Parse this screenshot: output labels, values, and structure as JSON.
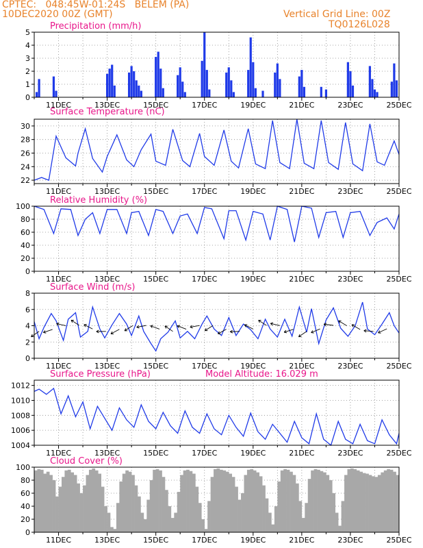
{
  "header": {
    "line1": "CPTEC:   048:45W-01:24S   BELEM (PA)",
    "line2": "10DEC2020 00Z (GMT)",
    "grid_note": "Vertical Grid Line: 00Z",
    "run_code": "TQ0126L028"
  },
  "colors": {
    "header": "#e8822a",
    "title": "#e8168a",
    "series": "#1f3ae8",
    "cloud": "#a8a8a8",
    "axis": "#000000"
  },
  "chart_data": [
    {
      "type": "bar",
      "title": "Precipitation (mm/h)",
      "ylim": [
        0,
        5
      ],
      "yticks": [
        "0",
        "1",
        "2",
        "3",
        "4",
        "5"
      ],
      "xticks": [
        "11DEC",
        "13DEC",
        "15DEC",
        "17DEC",
        "19DEC",
        "21DEC",
        "23DEC",
        "25DEC"
      ],
      "grid": true,
      "series": [
        {
          "x": [
            10.1,
            10.2,
            10.8,
            10.9,
            13.0,
            13.1,
            13.2,
            13.3,
            13.9,
            14.0,
            14.1,
            14.2,
            14.3,
            14.4,
            15.0,
            15.1,
            15.2,
            15.3,
            15.9,
            16.0,
            16.1,
            16.2,
            16.9,
            17.0,
            17.1,
            17.2,
            17.9,
            18.0,
            18.1,
            18.2,
            18.8,
            18.9,
            19.0,
            19.1,
            19.4,
            19.9,
            20.0,
            20.1,
            20.9,
            21.0,
            21.1,
            21.8,
            22.0,
            22.9,
            23.0,
            23.1,
            23.8,
            23.9,
            24.0,
            24.1,
            24.7,
            24.8,
            24.9
          ],
          "values": [
            0.4,
            1.4,
            1.6,
            0.5,
            1.8,
            2.2,
            2.5,
            0.9,
            1.9,
            2.4,
            2.0,
            1.3,
            0.9,
            0.5,
            3.1,
            3.5,
            2.2,
            0.7,
            1.7,
            2.3,
            1.2,
            0.4,
            2.8,
            5.0,
            2.1,
            0.6,
            1.9,
            2.3,
            1.3,
            0.4,
            2.1,
            4.6,
            2.7,
            0.7,
            0.5,
            1.9,
            2.6,
            1.4,
            1.6,
            2.1,
            0.8,
            0.8,
            0.6,
            2.7,
            2.0,
            0.9,
            2.4,
            1.4,
            0.6,
            0.4,
            1.2,
            2.6,
            1.3
          ]
        }
      ]
    },
    {
      "type": "line",
      "title": "Surface Temperature (nC)",
      "ylim": [
        21.5,
        31
      ],
      "yticks": [
        "22",
        "24",
        "26",
        "28",
        "30"
      ],
      "xticks": [
        "11DEC",
        "13DEC",
        "15DEC",
        "17DEC",
        "19DEC",
        "21DEC",
        "23DEC",
        "25DEC"
      ],
      "grid": true,
      "series": [
        {
          "x": [
            10.0,
            10.3,
            10.6,
            10.9,
            11.3,
            11.7,
            11.8,
            12.1,
            12.4,
            12.8,
            13.0,
            13.4,
            13.8,
            14.1,
            14.4,
            14.8,
            15.0,
            15.4,
            15.7,
            16.1,
            16.4,
            16.8,
            17.0,
            17.4,
            17.8,
            18.1,
            18.4,
            18.8,
            19.1,
            19.5,
            19.8,
            20.1,
            20.5,
            20.8,
            21.1,
            21.5,
            21.8,
            22.1,
            22.5,
            22.8,
            23.1,
            23.5,
            23.8,
            24.1,
            24.4,
            24.8,
            25.0
          ],
          "values": [
            22.0,
            22.4,
            22.0,
            28.5,
            25.3,
            24.1,
            26.0,
            29.6,
            25.2,
            23.2,
            25.5,
            28.7,
            25.0,
            24.0,
            26.5,
            28.8,
            24.8,
            24.2,
            29.5,
            24.9,
            24.0,
            28.9,
            25.5,
            24.2,
            29.4,
            24.8,
            23.8,
            29.6,
            24.4,
            23.7,
            30.8,
            24.6,
            23.7,
            31.1,
            24.5,
            23.7,
            30.8,
            24.6,
            23.6,
            30.5,
            24.4,
            23.4,
            30.3,
            24.7,
            24.2,
            27.8,
            25.8
          ]
        }
      ]
    },
    {
      "type": "line",
      "title": "Relative Humidity (%)",
      "ylim": [
        0,
        100
      ],
      "yticks": [
        "0",
        "20",
        "40",
        "60",
        "80",
        "100"
      ],
      "xticks": [
        "11DEC",
        "13DEC",
        "15DEC",
        "17DEC",
        "19DEC",
        "21DEC",
        "23DEC",
        "25DEC"
      ],
      "grid": true,
      "series": [
        {
          "x": [
            10.0,
            10.4,
            10.8,
            11.1,
            11.5,
            11.8,
            12.1,
            12.4,
            12.7,
            13.0,
            13.4,
            13.8,
            14.0,
            14.3,
            14.7,
            15.0,
            15.3,
            15.7,
            16.0,
            16.3,
            16.7,
            17.0,
            17.3,
            17.8,
            18.0,
            18.3,
            18.7,
            19.0,
            19.4,
            19.7,
            20.0,
            20.4,
            20.7,
            21.0,
            21.4,
            21.7,
            22.0,
            22.4,
            22.7,
            23.0,
            23.4,
            23.8,
            24.1,
            24.5,
            24.8,
            25.0
          ],
          "values": [
            100,
            95,
            58,
            96,
            95,
            55,
            80,
            90,
            58,
            95,
            95,
            58,
            90,
            92,
            55,
            95,
            92,
            58,
            85,
            88,
            58,
            98,
            96,
            50,
            93,
            93,
            48,
            92,
            88,
            48,
            100,
            95,
            45,
            100,
            97,
            52,
            90,
            92,
            52,
            90,
            92,
            55,
            75,
            82,
            65,
            88
          ]
        }
      ]
    },
    {
      "type": "line",
      "title": "Surface Wind (m/s)",
      "ylim": [
        0,
        8
      ],
      "yticks": [
        "0",
        "2",
        "4",
        "6",
        "8"
      ],
      "xticks": [
        "11DEC",
        "13DEC",
        "15DEC",
        "17DEC",
        "19DEC",
        "21DEC",
        "23DEC",
        "25DEC"
      ],
      "grid": true,
      "series": [
        {
          "x": [
            10.0,
            10.2,
            10.4,
            10.7,
            10.9,
            11.2,
            11.4,
            11.7,
            11.9,
            12.2,
            12.4,
            12.7,
            12.9,
            13.2,
            13.5,
            13.8,
            14.0,
            14.3,
            14.5,
            14.8,
            15.0,
            15.2,
            15.5,
            15.8,
            16.0,
            16.3,
            16.6,
            16.9,
            17.1,
            17.4,
            17.7,
            18.0,
            18.3,
            18.6,
            18.9,
            19.2,
            19.5,
            19.7,
            20.0,
            20.3,
            20.6,
            20.9,
            21.2,
            21.4,
            21.7,
            22.0,
            22.3,
            22.6,
            22.9,
            23.2,
            23.5,
            23.7,
            24.0,
            24.3,
            24.6,
            24.8,
            25.0
          ],
          "values": [
            4.5,
            2.4,
            3.8,
            5.5,
            4.6,
            2.2,
            4.8,
            5.6,
            2.6,
            3.3,
            6.3,
            3.6,
            2.5,
            4.1,
            5.5,
            4.2,
            2.8,
            5.2,
            3.3,
            1.8,
            0.9,
            2.4,
            3.2,
            4.6,
            2.5,
            3.3,
            2.4,
            4.2,
            5.2,
            3.6,
            2.8,
            5.0,
            2.8,
            4.2,
            3.5,
            2.4,
            4.8,
            3.6,
            2.6,
            4.8,
            2.7,
            6.3,
            3.2,
            6.1,
            1.8,
            4.7,
            6.2,
            3.7,
            2.7,
            4.0,
            6.9,
            3.6,
            2.9,
            4.2,
            5.6,
            4.0,
            3.1
          ]
        }
      ]
    },
    {
      "type": "line",
      "title": "Surface Pressure (hPa)",
      "subtitle": "Model Altitude: 16.029 m",
      "ylim": [
        1004,
        1012.7
      ],
      "yticks": [
        "1004",
        "1006",
        "1008",
        "1010",
        "1012"
      ],
      "xticks": [
        "11DEC",
        "13DEC",
        "15DEC",
        "17DEC",
        "19DEC",
        "21DEC",
        "23DEC",
        "25DEC"
      ],
      "grid": true,
      "series": [
        {
          "x": [
            10.0,
            10.2,
            10.5,
            10.8,
            11.1,
            11.4,
            11.7,
            12.0,
            12.3,
            12.6,
            12.9,
            13.2,
            13.5,
            13.8,
            14.1,
            14.4,
            14.7,
            15.0,
            15.3,
            15.6,
            15.9,
            16.2,
            16.5,
            16.8,
            17.1,
            17.4,
            17.7,
            18.0,
            18.3,
            18.6,
            18.9,
            19.2,
            19.5,
            19.8,
            20.1,
            20.4,
            20.7,
            21.0,
            21.3,
            21.6,
            21.9,
            22.2,
            22.5,
            22.8,
            23.1,
            23.4,
            23.7,
            24.0,
            24.3,
            24.6,
            24.9,
            25.0
          ],
          "values": [
            1011.2,
            1011.5,
            1010.8,
            1011.6,
            1008.2,
            1010.6,
            1007.8,
            1009.8,
            1006.2,
            1009.2,
            1007.6,
            1006.0,
            1009.0,
            1007.4,
            1006.4,
            1009.4,
            1007.2,
            1006.2,
            1008.4,
            1006.6,
            1005.6,
            1008.6,
            1006.4,
            1005.6,
            1008.2,
            1006.2,
            1005.4,
            1008.0,
            1006.4,
            1005.2,
            1008.3,
            1005.8,
            1004.8,
            1006.8,
            1005.6,
            1004.4,
            1007.2,
            1005.0,
            1004.2,
            1008.2,
            1004.8,
            1004.0,
            1007.2,
            1004.8,
            1004.2,
            1006.8,
            1004.6,
            1004.2,
            1007.4,
            1005.4,
            1004.2,
            1005.6
          ]
        }
      ]
    },
    {
      "type": "bar",
      "title": "Cloud Cover (%)",
      "ylim": [
        0,
        100
      ],
      "yticks": [
        "0",
        "20",
        "40",
        "60",
        "80",
        "100"
      ],
      "xticks": [
        "11DEC",
        "13DEC",
        "15DEC",
        "17DEC",
        "19DEC",
        "21DEC",
        "23DEC",
        "25DEC"
      ],
      "grid": true,
      "series": [
        {
          "x_start": 10.0,
          "x_step": 0.125,
          "values": [
            95,
            97,
            96,
            90,
            93,
            88,
            80,
            55,
            70,
            85,
            95,
            96,
            92,
            88,
            75,
            60,
            72,
            88,
            96,
            98,
            95,
            90,
            70,
            40,
            30,
            8,
            5,
            45,
            78,
            90,
            95,
            93,
            88,
            72,
            55,
            30,
            20,
            50,
            80,
            96,
            97,
            95,
            85,
            65,
            40,
            22,
            30,
            62,
            88,
            95,
            96,
            94,
            90,
            70,
            45,
            20,
            5,
            48,
            85,
            97,
            98,
            96,
            95,
            93,
            90,
            85,
            70,
            50,
            60,
            88,
            96,
            97,
            95,
            92,
            86,
            72,
            52,
            30,
            12,
            40,
            78,
            95,
            97,
            96,
            93,
            88,
            75,
            48,
            22,
            45,
            82,
            95,
            97,
            96,
            94,
            92,
            88,
            80,
            60,
            30,
            10,
            48,
            88,
            97,
            98,
            97,
            95,
            93,
            91,
            90,
            88,
            86,
            85,
            88,
            92,
            95,
            97,
            96,
            93,
            88
          ]
        }
      ]
    }
  ]
}
